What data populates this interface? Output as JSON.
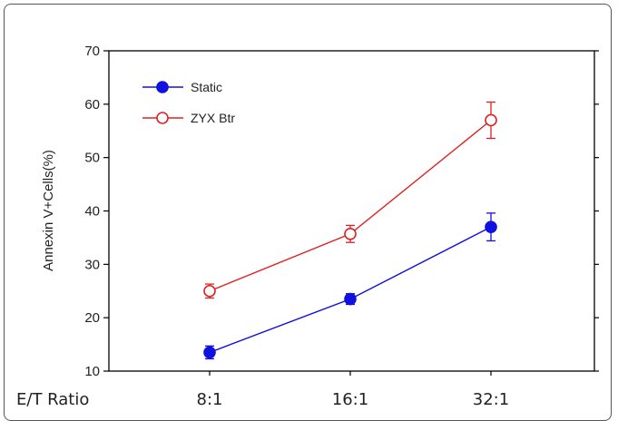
{
  "chart_data": {
    "type": "line",
    "categories_label": "E/T Ratio",
    "categories": [
      "8:1",
      "16:1",
      "32:1"
    ],
    "ylabel": "Annexin V+Cells(%)",
    "ylim": [
      10,
      70
    ],
    "yticks": [
      10,
      20,
      30,
      40,
      50,
      60,
      70
    ],
    "legend_position": "top-left",
    "grid": false,
    "series": [
      {
        "name": "Static",
        "values": [
          13.5,
          23.5,
          37
        ],
        "errors": [
          1.2,
          1.0,
          2.6
        ],
        "color": "#1010e0",
        "marker": "filled-circle"
      },
      {
        "name": "ZYX Btr",
        "values": [
          25,
          35.7,
          57
        ],
        "errors": [
          1.3,
          1.6,
          3.4
        ],
        "color": "#e02020",
        "marker": "open-circle"
      }
    ]
  }
}
